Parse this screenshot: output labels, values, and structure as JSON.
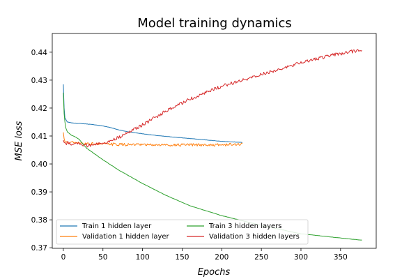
{
  "chart_data": {
    "type": "line",
    "title": "Model training dynamics",
    "xlabel": "Epochs",
    "ylabel": "MSE loss",
    "xlim": [
      -14,
      395
    ],
    "ylim": [
      0.3698,
      0.4467
    ],
    "xticks": [
      0,
      50,
      100,
      150,
      200,
      250,
      300,
      350
    ],
    "yticks": [
      0.37,
      0.38,
      0.39,
      0.4,
      0.41,
      0.42,
      0.43,
      0.44
    ],
    "ytick_labels": [
      "0.37",
      "0.38",
      "0.39",
      "0.40",
      "0.41",
      "0.42",
      "0.43",
      "0.44"
    ],
    "grid": false,
    "legend_location": "lower-left",
    "legend_columns": 2,
    "series": [
      {
        "name": "Train 1 hidden layer",
        "color": "#1f77b4",
        "noise": 5e-05,
        "points": [
          [
            0,
            0.4285
          ],
          [
            1,
            0.42
          ],
          [
            2,
            0.4165
          ],
          [
            5,
            0.415
          ],
          [
            10,
            0.4147
          ],
          [
            20,
            0.4145
          ],
          [
            30,
            0.4143
          ],
          [
            40,
            0.414
          ],
          [
            50,
            0.4136
          ],
          [
            60,
            0.413
          ],
          [
            70,
            0.4122
          ],
          [
            80,
            0.4116
          ],
          [
            90,
            0.4112
          ],
          [
            100,
            0.4108
          ],
          [
            120,
            0.4101
          ],
          [
            140,
            0.4096
          ],
          [
            160,
            0.4091
          ],
          [
            180,
            0.4086
          ],
          [
            200,
            0.4081
          ],
          [
            226,
            0.4077
          ]
        ]
      },
      {
        "name": "Validation 1 hidden layer",
        "color": "#ff7f0e",
        "noise": 0.0005,
        "points": [
          [
            0,
            0.4113
          ],
          [
            1,
            0.409
          ],
          [
            2,
            0.408
          ],
          [
            4,
            0.4076
          ],
          [
            10,
            0.4077
          ],
          [
            20,
            0.4074
          ],
          [
            50,
            0.4071
          ],
          [
            100,
            0.4068
          ],
          [
            150,
            0.4068
          ],
          [
            200,
            0.4068
          ],
          [
            226,
            0.4071
          ]
        ]
      },
      {
        "name": "Train 3 hidden layers",
        "color": "#2ca02c",
        "noise": 4e-05,
        "points": [
          [
            0,
            0.4255
          ],
          [
            1,
            0.418
          ],
          [
            2,
            0.415
          ],
          [
            3,
            0.413
          ],
          [
            5,
            0.4115
          ],
          [
            10,
            0.4103
          ],
          [
            15,
            0.4097
          ],
          [
            20,
            0.4088
          ],
          [
            25,
            0.407
          ],
          [
            30,
            0.4055
          ],
          [
            40,
            0.4035
          ],
          [
            50,
            0.4015
          ],
          [
            70,
            0.3978
          ],
          [
            100,
            0.393
          ],
          [
            130,
            0.3887
          ],
          [
            160,
            0.385
          ],
          [
            200,
            0.3815
          ],
          [
            250,
            0.378
          ],
          [
            300,
            0.375
          ],
          [
            350,
            0.3735
          ],
          [
            377,
            0.3727
          ]
        ]
      },
      {
        "name": "Validation 3 hidden layers",
        "color": "#d62728",
        "noise": 0.0006,
        "points": [
          [
            0,
            0.4085
          ],
          [
            1,
            0.4077
          ],
          [
            3,
            0.4075
          ],
          [
            10,
            0.4072
          ],
          [
            20,
            0.407
          ],
          [
            30,
            0.4066
          ],
          [
            40,
            0.407
          ],
          [
            50,
            0.4075
          ],
          [
            60,
            0.4082
          ],
          [
            70,
            0.4095
          ],
          [
            80,
            0.411
          ],
          [
            100,
            0.414
          ],
          [
            130,
            0.419
          ],
          [
            160,
            0.4232
          ],
          [
            200,
            0.4278
          ],
          [
            250,
            0.432
          ],
          [
            300,
            0.4362
          ],
          [
            340,
            0.439
          ],
          [
            370,
            0.4405
          ],
          [
            377,
            0.441
          ]
        ]
      }
    ]
  }
}
